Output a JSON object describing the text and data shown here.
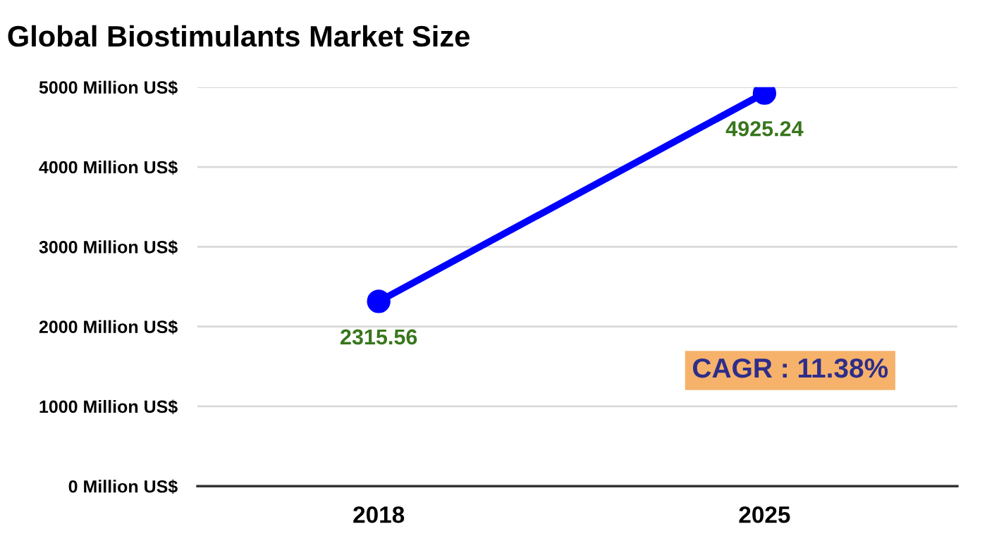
{
  "chart_data": {
    "type": "line",
    "title": "Global Biostimulants Market Size",
    "categories": [
      "2018",
      "2025"
    ],
    "series": [
      {
        "color": "#0000ff",
        "values": [
          2315.56,
          4925.24
        ]
      }
    ],
    "ylim": [
      0,
      5000
    ],
    "yticks": [
      {
        "value": 0,
        "label": "0 Million US$"
      },
      {
        "value": 1000,
        "label": "1000 Million US$"
      },
      {
        "value": 2000,
        "label": "2000 Million US$"
      },
      {
        "value": 3000,
        "label": "3000 Million US$"
      },
      {
        "value": 4000,
        "label": "4000 Million US$"
      },
      {
        "value": 5000,
        "label": "5000 Million US$"
      }
    ],
    "grid": "y",
    "marker": "circle",
    "line_style": "solid",
    "data_labels": true,
    "legend": false,
    "annotations": [
      "CAGR : 11.38%"
    ]
  }
}
